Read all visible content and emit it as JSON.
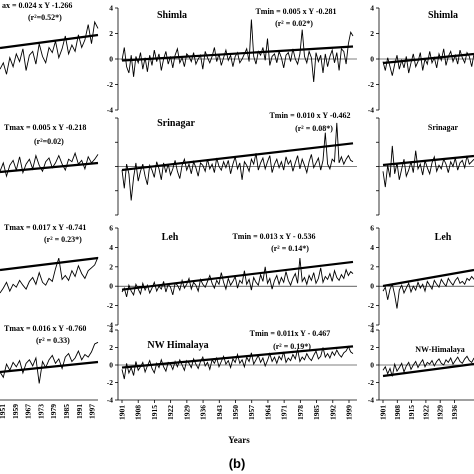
{
  "chart_data": {
    "type": "line",
    "caption": "(b)",
    "x_axis_label": "Years",
    "x_tick_labels_middle": [
      "1901",
      "1908",
      "1915",
      "1922",
      "1929",
      "1936",
      "1943",
      "1950",
      "1957",
      "1964",
      "1971",
      "1978",
      "1985",
      "1992",
      "1999"
    ],
    "x_tick_labels_right": [
      "1901",
      "1908",
      "1915",
      "1922",
      "1929",
      "1936"
    ],
    "x_tick_labels_left_partial": [
      "1951",
      "1959",
      "1967",
      "1973",
      "1979",
      "1985",
      "1991",
      "1997"
    ],
    "y_ticks": {
      "row1": [
        "4",
        "2",
        "0",
        "-2",
        "-4"
      ],
      "row2": [
        "",
        "",
        "",
        "",
        ""
      ],
      "row3": [
        "6",
        "4",
        "2",
        "0",
        "-2",
        "-4"
      ],
      "row4": [
        "4",
        "2",
        "0",
        "-2",
        "-4"
      ]
    },
    "panels": [
      {
        "region": "Shimla",
        "left_equation": "ax = 0.024 x Y -1.266",
        "left_r2": "(r²=0.52*)",
        "tmin_equation": "Tmin = 0.005 x Y -0.281",
        "tmin_r2": "(r² = 0.02*)",
        "ylim": [
          -4,
          4
        ],
        "trend": {
          "slope": 0.005,
          "intercept": -0.281
        },
        "series": [
          -0.1,
          0.9,
          -0.6,
          -1.1,
          0.3,
          -1.4,
          0.2,
          -0.3,
          0.5,
          -0.8,
          0.1,
          -1.0,
          0.3,
          -0.5,
          0.7,
          -0.2,
          0.4,
          -0.9,
          0.0,
          0.6,
          -0.4,
          0.2,
          -0.7,
          0.3,
          0.8,
          -0.3,
          0.1,
          -0.6,
          0.4,
          0.2,
          -0.2,
          0.5,
          -0.4,
          0.0,
          0.3,
          -0.8,
          0.6,
          0.1,
          -0.3,
          0.2,
          0.9,
          -0.2,
          0.4,
          -0.5,
          0.1,
          0.7,
          -0.1,
          0.3,
          -0.6,
          0.2,
          0.5,
          -0.3,
          0.0,
          0.4,
          0.8,
          -0.2,
          3.1,
          0.2,
          -0.4,
          0.6,
          0.3,
          0.9,
          -0.1,
          1.6,
          -0.5,
          0.2,
          0.4,
          -0.3,
          0.6,
          0.1,
          -0.7,
          0.3,
          0.5,
          -0.2,
          0.8,
          0.0,
          -0.4,
          0.4,
          2.3,
          0.2,
          -0.3,
          0.6,
          0.1,
          -1.8,
          0.5,
          -0.2,
          0.3,
          -1.1,
          0.4,
          -0.6,
          0.2,
          0.7,
          -0.3,
          0.5,
          -0.9,
          0.8,
          0.6,
          -0.4,
          1.2,
          2.1,
          1.8
        ]
      },
      {
        "region": "Srinagar",
        "left_equation": "Tmax = 0.005 x Y -0.218",
        "left_r2": "(r²=0.02)",
        "tmin_equation": "Tmin = 0.010 x Y -0.462",
        "tmin_r2": "(r² = 0.08*)",
        "ylim": [
          -4,
          4
        ],
        "trend": {
          "slope": 0.01,
          "intercept": -0.462
        },
        "series": [
          -0.3,
          -1.8,
          0.2,
          -0.6,
          -2.8,
          -0.9,
          0.3,
          -1.2,
          -0.4,
          0.2,
          -0.8,
          -1.5,
          0.1,
          -0.3,
          -0.9,
          0.4,
          -0.2,
          -1.1,
          0.3,
          -0.5,
          0.2,
          -0.7,
          -0.2,
          0.5,
          -0.4,
          -1.0,
          0.1,
          0.6,
          -0.3,
          0.2,
          -0.6,
          0.4,
          -0.1,
          -0.8,
          0.3,
          0.1,
          -0.4,
          0.6,
          -0.2,
          0.2,
          -0.5,
          0.7,
          0.0,
          -0.3,
          0.4,
          -0.1,
          0.5,
          -0.6,
          0.2,
          0.8,
          -0.2,
          0.3,
          -1.1,
          0.4,
          0.1,
          -0.4,
          0.6,
          0.2,
          1.1,
          -0.3,
          0.3,
          0.7,
          -0.2,
          0.4,
          0.9,
          -0.5,
          0.2,
          0.6,
          -0.1,
          0.4,
          -0.3,
          0.8,
          0.2,
          0.5,
          -0.4,
          0.3,
          0.9,
          -0.2,
          0.6,
          0.1,
          -0.5,
          0.4,
          1.0,
          -0.1,
          0.3,
          0.7,
          -0.3,
          0.5,
          2.8,
          0.2,
          -0.2,
          0.6,
          0.4,
          3.6,
          0.3,
          0.8,
          0.2,
          0.6,
          0.9,
          0.5,
          0.4
        ]
      },
      {
        "region": "Leh",
        "left_equation": "Tmax = 0.017 x Y -0.741",
        "left_r2": "(r² = 0.23*)",
        "tmin_equation": "Tmin = 0.013 x Y - 0.536",
        "tmin_r2": "(r² = 0.14*)",
        "ylim": [
          -4,
          6
        ],
        "trend": {
          "slope": 0.013,
          "intercept": -0.536
        },
        "series": [
          -0.6,
          -0.2,
          -1.1,
          0.1,
          -0.5,
          -0.9,
          0.2,
          -0.3,
          -0.8,
          0.3,
          -0.4,
          0.1,
          -0.7,
          -0.2,
          0.4,
          -0.5,
          0.0,
          -0.3,
          0.5,
          -0.6,
          0.2,
          -0.1,
          -0.9,
          0.3,
          0.1,
          -0.4,
          0.6,
          -0.2,
          0.2,
          0.8,
          -0.3,
          0.4,
          0.1,
          -0.5,
          0.7,
          0.2,
          -0.1,
          0.5,
          1.1,
          0.3,
          -0.2,
          0.6,
          0.2,
          1.4,
          0.4,
          -0.3,
          0.8,
          0.1,
          0.5,
          1.0,
          -0.2,
          0.6,
          0.3,
          1.6,
          0.2,
          0.7,
          -0.4,
          0.9,
          0.4,
          0.1,
          1.2,
          0.5,
          2.0,
          0.3,
          0.8,
          -0.3,
          0.6,
          1.1,
          0.2,
          0.9,
          0.4,
          1.5,
          0.6,
          0.1,
          0.8,
          1.3,
          0.3,
          2.9,
          0.5,
          0.9,
          0.2,
          1.1,
          0.6,
          1.4,
          0.3,
          0.8,
          1.9,
          0.4,
          1.0,
          0.7,
          1.3,
          0.5,
          1.6,
          0.9,
          0.6,
          1.2,
          0.8,
          1.7,
          1.1,
          1.5,
          1.3
        ]
      },
      {
        "region": "NW Himalaya",
        "left_equation": "Tmax = 0.016 x Y -0.760",
        "left_r2": "(r² = 0.33)",
        "tmin_equation": "Tmin = 0.011x Y - 0.467",
        "tmin_r2": "(r² = 0.19*)",
        "ylim": [
          -4,
          4
        ],
        "trend": {
          "slope": 0.011,
          "intercept": -0.467
        },
        "series": [
          -0.5,
          -1.6,
          0.2,
          -0.9,
          -0.3,
          -1.2,
          0.4,
          -0.6,
          -0.2,
          0.3,
          -0.8,
          -0.1,
          0.5,
          -0.4,
          -0.9,
          0.2,
          -0.3,
          0.6,
          -0.2,
          -0.7,
          0.3,
          0.1,
          -0.5,
          0.4,
          -0.2,
          0.6,
          0.0,
          -0.6,
          0.5,
          0.2,
          -0.3,
          0.7,
          0.1,
          -0.4,
          0.4,
          0.9,
          -0.1,
          0.3,
          -0.5,
          0.6,
          0.2,
          0.8,
          -0.2,
          0.4,
          1.0,
          0.1,
          0.5,
          -0.3,
          0.7,
          0.3,
          1.2,
          0.2,
          0.6,
          -0.2,
          0.9,
          0.4,
          1.4,
          0.1,
          0.6,
          1.1,
          0.3,
          0.8,
          -0.1,
          0.5,
          1.3,
          0.4,
          0.9,
          0.2,
          1.0,
          0.6,
          1.5,
          0.3,
          0.8,
          0.5,
          1.2,
          0.7,
          1.8,
          0.4,
          0.9,
          0.6,
          1.3,
          0.8,
          0.5,
          1.1,
          1.6,
          0.7,
          1.0,
          2.0,
          0.9,
          1.3,
          0.8,
          1.5,
          1.1,
          1.7,
          1.2,
          0.9,
          1.4,
          1.6,
          2.1,
          1.5,
          1.3
        ]
      }
    ],
    "right_column": [
      {
        "region": "Shimla",
        "ylim": [
          -4,
          4
        ],
        "series": [
          -0.2,
          -0.9,
          0.1,
          -0.6,
          -1.3,
          -0.4,
          0.3,
          -0.8,
          -0.1,
          -0.7,
          0.2,
          -1.1,
          -0.3,
          0.4,
          -0.6,
          -0.2,
          0.5,
          -0.9,
          0.0,
          -0.4,
          0.6,
          -0.3,
          0.1,
          -0.7,
          0.4,
          -0.1,
          0.8,
          -0.5,
          0.2,
          0.6,
          -0.2,
          0.3,
          -0.4,
          0.7,
          0.1,
          -0.3,
          0.5,
          0.2,
          -0.6,
          0.4
        ]
      },
      {
        "region": "Srinagar",
        "ylim": [
          -4,
          4
        ],
        "series": [
          -0.4,
          -1.7,
          0.1,
          -0.9,
          1.7,
          -0.6,
          0.3,
          -1.1,
          -0.2,
          0.6,
          -0.8,
          -0.3,
          0.4,
          -0.5,
          1.3,
          -0.2,
          0.2,
          -0.7,
          0.5,
          -0.1,
          -0.6,
          0.3,
          0.8,
          -0.4,
          0.1,
          -0.2,
          0.6,
          0.2,
          -0.5,
          0.4,
          0.0,
          0.7,
          -0.3,
          0.3,
          0.5,
          -0.1,
          0.9,
          0.2,
          0.4,
          0.6
        ]
      },
      {
        "region": "Leh",
        "ylim": [
          -4,
          6
        ],
        "series": [
          -0.5,
          -0.1,
          -1.4,
          -0.3,
          0.2,
          -0.9,
          -2.3,
          -0.4,
          0.1,
          -0.7,
          -0.2,
          0.3,
          -0.6,
          0.0,
          -0.4,
          0.4,
          -0.2,
          0.2,
          -0.5,
          0.5,
          0.1,
          -0.3,
          0.6,
          0.2,
          -0.1,
          0.7,
          0.3,
          0.0,
          0.8,
          0.4,
          0.1,
          0.6,
          0.9,
          0.3,
          0.5,
          0.2,
          0.8,
          0.6,
          1.0,
          0.7
        ]
      },
      {
        "region": "NW-Himalaya",
        "ylim": [
          -4,
          4
        ],
        "series": [
          -0.6,
          -0.2,
          -1.0,
          -0.4,
          -1.3,
          0.1,
          -0.7,
          -0.3,
          0.2,
          -0.8,
          -0.1,
          0.3,
          -0.5,
          0.0,
          0.4,
          -0.3,
          0.2,
          0.6,
          -0.2,
          0.3,
          0.1,
          0.5,
          -0.1,
          0.4,
          0.7,
          0.2,
          0.0,
          0.6,
          0.3,
          0.8,
          0.1,
          0.5,
          0.9,
          0.4,
          0.2,
          0.7,
          1.0,
          0.5,
          0.3,
          0.8
        ]
      }
    ],
    "left_column_trend_points": [
      [
        [
          -0.8,
          -0.3,
          -1.2,
          0.1,
          -0.6,
          0.4,
          -0.2,
          0.8,
          -0.9,
          0.3,
          0.6,
          -0.4,
          1.2,
          0.2,
          -0.3,
          0.9,
          0.5,
          1.4,
          0.1,
          0.8,
          1.8,
          0.4,
          1.1,
          0.6,
          1.9,
          0.9,
          1.5,
          2.7,
          1.2,
          2.9,
          2.4
        ]
      ],
      [
        [
          -0.4,
          0.3,
          -0.8,
          0.1,
          0.5,
          -0.3,
          0.8,
          -0.5,
          0.2,
          0.6,
          -0.2,
          0.9,
          0.1,
          -0.4,
          0.4,
          0.7,
          -0.1,
          0.3,
          0.9,
          0.2,
          -0.3,
          0.6,
          0.4,
          1.1,
          0.2,
          0.5,
          -0.2,
          0.8,
          0.3,
          0.6,
          1.0
        ]
      ],
      [
        [
          -0.7,
          -0.2,
          0.4,
          -0.5,
          0.2,
          -0.1,
          0.6,
          0.1,
          -0.3,
          0.5,
          0.9,
          0.2,
          1.4,
          0.4,
          0.1,
          0.8,
          0.5,
          1.8,
          2.9,
          0.7,
          1.1,
          0.6,
          1.6,
          1.0,
          2.1,
          1.3,
          0.8,
          1.6,
          1.9,
          2.2,
          3.0
        ]
      ],
      [
        [
          -0.8,
          -1.4,
          0.1,
          -0.6,
          0.3,
          -0.2,
          0.5,
          -0.9,
          0.2,
          0.6,
          -0.1,
          0.8,
          -2.1,
          0.4,
          -0.3,
          0.6,
          1.1,
          0.2,
          0.7,
          -0.4,
          0.9,
          1.3,
          0.4,
          0.8,
          1.6,
          0.6,
          1.2,
          0.9,
          1.5,
          2.4,
          2.6
        ]
      ]
    ]
  }
}
